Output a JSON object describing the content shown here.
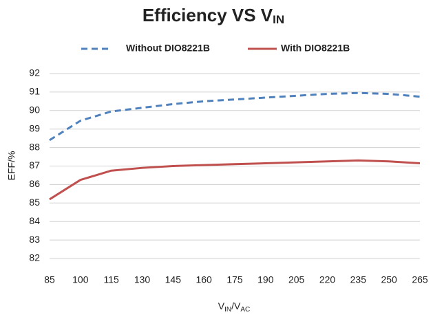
{
  "chart_data": {
    "type": "line",
    "title": [
      "Efficiency VS V",
      "IN"
    ],
    "x_label": [
      "V",
      "IN",
      "/V",
      "AC"
    ],
    "y_label": "EFF/%",
    "x": [
      85,
      100,
      115,
      130,
      145,
      160,
      175,
      190,
      205,
      220,
      235,
      250,
      265
    ],
    "series": [
      {
        "name": "Without DIO8221B",
        "color": "#4f81bd",
        "dashed": true,
        "values": [
          88.4,
          89.45,
          89.95,
          90.15,
          90.35,
          90.5,
          90.6,
          90.7,
          90.8,
          90.9,
          90.95,
          90.9,
          90.75
        ]
      },
      {
        "name": "With DIO8221B",
        "color": "#c0504d",
        "dashed": false,
        "values": [
          85.2,
          86.25,
          86.75,
          86.9,
          87.0,
          87.05,
          87.1,
          87.15,
          87.2,
          87.25,
          87.3,
          87.25,
          87.15
        ]
      }
    ],
    "xlim": [
      85,
      265
    ],
    "xticks": [
      85,
      100,
      115,
      130,
      145,
      160,
      175,
      190,
      205,
      220,
      235,
      250,
      265
    ],
    "ylim": [
      82,
      92
    ],
    "yticks": [
      82,
      83,
      84,
      85,
      86,
      87,
      88,
      89,
      90,
      91,
      92
    ],
    "grid": true,
    "legend": "top"
  }
}
